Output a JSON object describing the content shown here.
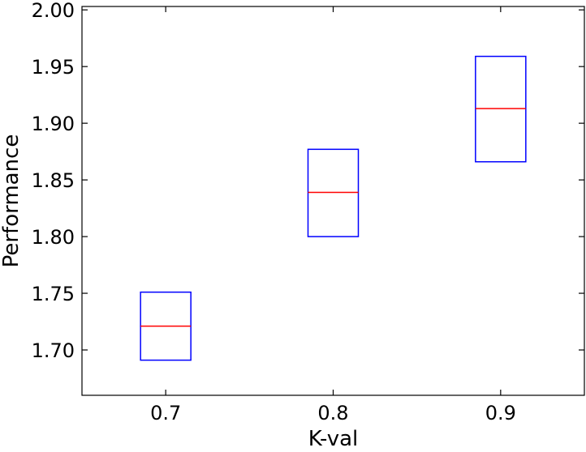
{
  "chart_data": {
    "type": "box",
    "title": "",
    "xlabel": "K-val",
    "ylabel": "Performance",
    "categories": [
      "0.7",
      "0.8",
      "0.9"
    ],
    "boxes": [
      {
        "category": "0.7",
        "q1": 1.691,
        "median": 1.721,
        "q3": 1.751
      },
      {
        "category": "0.8",
        "q1": 1.8,
        "median": 1.839,
        "q3": 1.877
      },
      {
        "category": "0.9",
        "q1": 1.866,
        "median": 1.913,
        "q3": 1.959
      }
    ],
    "x_ticks": [
      "0.7",
      "0.8",
      "0.9"
    ],
    "x_tick_values": [
      0.7,
      0.8,
      0.9
    ],
    "xlim": [
      0.65,
      0.95
    ],
    "y_ticks": [
      "1.70",
      "1.75",
      "1.80",
      "1.85",
      "1.90",
      "1.95",
      "2.00"
    ],
    "y_tick_values": [
      1.7,
      1.75,
      1.8,
      1.85,
      1.9,
      1.95,
      2.0
    ],
    "ylim": [
      1.66,
      2.003
    ],
    "grid": false,
    "legend": "none",
    "box_color": "#0000ff",
    "median_color": "#ff0000",
    "axis_color": "#000000"
  }
}
